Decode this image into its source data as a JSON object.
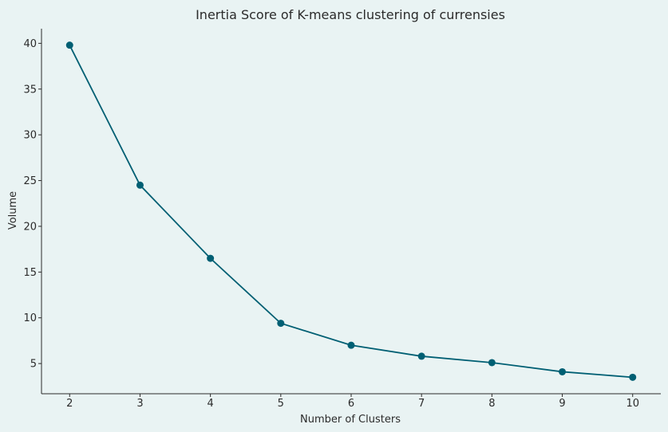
{
  "chart_data": {
    "type": "line",
    "title": "Inertia Score of K-means clustering of currensies",
    "xlabel": "Number of Clusters",
    "ylabel": "Volume",
    "x": [
      2,
      3,
      4,
      5,
      6,
      7,
      8,
      9,
      10
    ],
    "series": [
      {
        "name": "",
        "values": [
          39.8,
          24.5,
          16.5,
          9.4,
          7.0,
          5.8,
          5.1,
          4.1,
          3.5
        ],
        "color": "#005f73"
      }
    ],
    "xticks": [
      "2",
      "3",
      "4",
      "5",
      "6",
      "7",
      "8",
      "9",
      "10"
    ],
    "yticks": [
      "5",
      "10",
      "15",
      "20",
      "25",
      "30",
      "35",
      "40"
    ],
    "ylim": [
      1.7,
      41.6
    ],
    "xlim": [
      1.6,
      10.4
    ],
    "grid": false,
    "legend": "none",
    "colors": {
      "background": "#e9f3f3",
      "line": "#005f73",
      "axis": "#2b2b2b"
    }
  }
}
